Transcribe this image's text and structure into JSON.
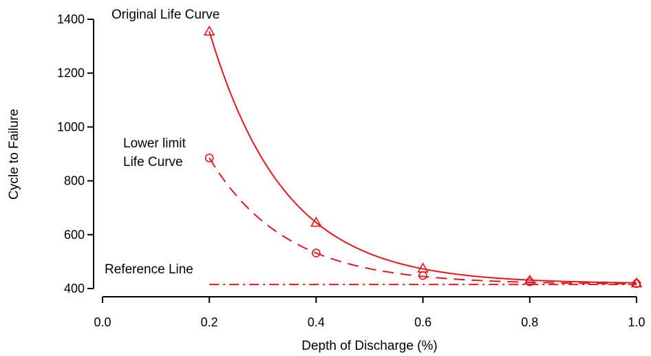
{
  "chart_data": {
    "type": "line",
    "title": "",
    "xlabel": "Depth of Discharge (%)",
    "ylabel": "Cycle to Failure",
    "xlim": [
      0.0,
      1.0
    ],
    "ylim": [
      400,
      1400
    ],
    "x_ticks": [
      "0.0",
      "0.2",
      "0.4",
      "0.6",
      "0.8",
      "1.0"
    ],
    "y_ticks": [
      "400",
      "600",
      "800",
      "1000",
      "1200",
      "1400"
    ],
    "grid": false,
    "legend": "none",
    "color": "#e8141c",
    "series": [
      {
        "annotation": "Original Life Curve",
        "style": "solid",
        "marker": "triangle",
        "x": [
          0.2,
          0.4,
          0.6,
          0.8,
          1.0
        ],
        "y": [
          1355,
          645,
          475,
          430,
          420
        ]
      },
      {
        "annotation_lines": [
          "Lower limit",
          "Life Curve"
        ],
        "style": "dashed",
        "marker": "circle",
        "x": [
          0.2,
          0.4,
          0.6,
          0.8,
          1.0
        ],
        "y": [
          885,
          532,
          448,
          425,
          418
        ]
      },
      {
        "annotation": "Reference Line",
        "style": "dashdot",
        "marker": "none",
        "x": [
          0.2,
          1.0
        ],
        "y": [
          415,
          415
        ]
      }
    ]
  }
}
